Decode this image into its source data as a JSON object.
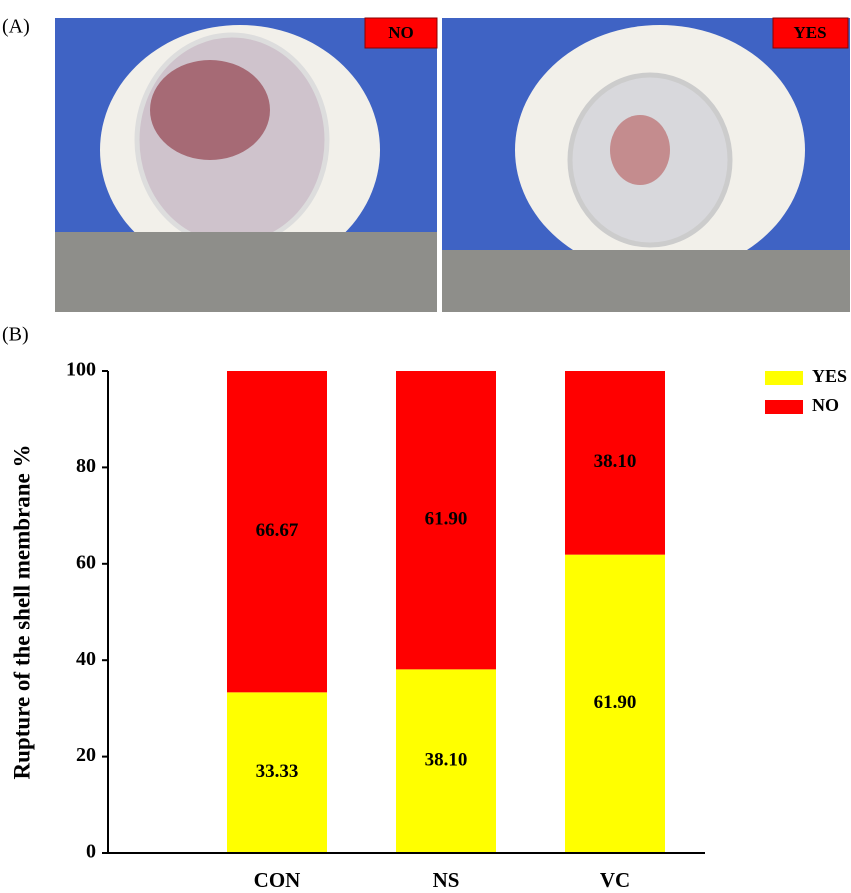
{
  "panel_labels": [
    "(A)",
    "(B)"
  ],
  "photos": [
    {
      "label": "NO"
    },
    {
      "label": "YES"
    }
  ],
  "chart_data": {
    "type": "bar",
    "stacked": true,
    "ylabel": "Rupture of the shell membrane %",
    "categories": [
      "CON",
      "NS",
      "VC"
    ],
    "series": [
      {
        "name": "YES",
        "color": "#ffff00",
        "values": [
          33.33,
          38.1,
          61.9
        ],
        "value_labels": [
          "33.33",
          "38.10",
          "61.90"
        ]
      },
      {
        "name": "NO",
        "color": "#ff0000",
        "values": [
          66.67,
          61.9,
          38.1
        ],
        "value_labels": [
          "66.67",
          "61.90",
          "38.10"
        ]
      }
    ],
    "ylim": [
      0,
      100
    ],
    "yticks": [
      0,
      20,
      40,
      60,
      80,
      100
    ],
    "legend": "upper right"
  }
}
